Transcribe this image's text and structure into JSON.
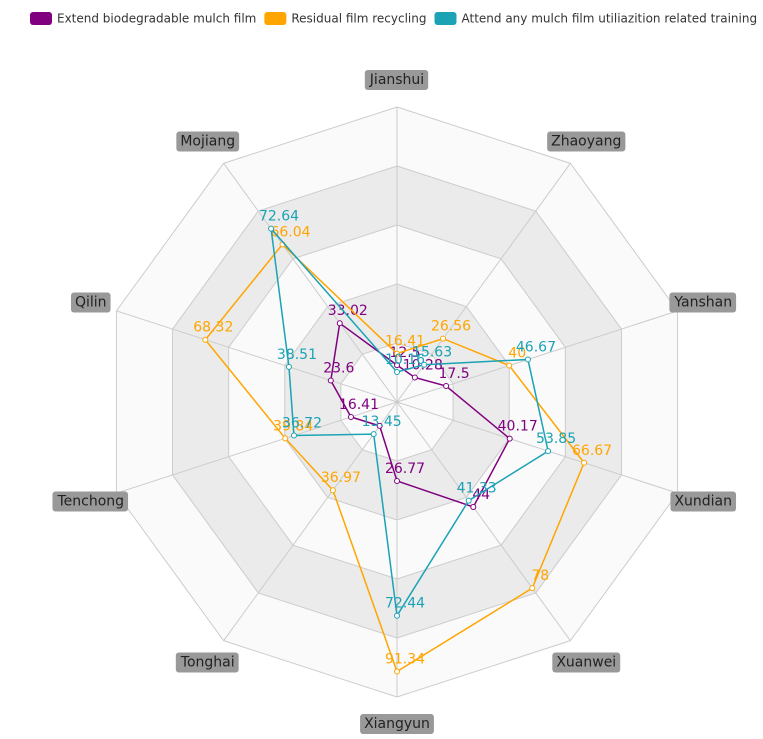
{
  "chart_data": {
    "type": "radar",
    "indicators": [
      "Jianshui",
      "Zhaoyang",
      "Yanshan",
      "Xundian",
      "Xuanwei",
      "Xiangyun",
      "Tonghai",
      "Tenchong",
      "Qilin",
      "Mojiang"
    ],
    "max": 100,
    "series": [
      {
        "name": "Extend biodegradable mulch film",
        "color": "#800080",
        "values": [
          12.5,
          10.28,
          17.5,
          40.17,
          44,
          26.77,
          10,
          16.41,
          23.6,
          33.02
        ],
        "value_labels": [
          "12.5",
          "10.28",
          "17.5",
          "40.17",
          "44",
          "26.77",
          null,
          "16.41",
          "23.6",
          "33.02"
        ]
      },
      {
        "name": "Residual film recycling",
        "color": "#ffa500",
        "values": [
          16.41,
          26.56,
          40,
          66.67,
          78,
          91.34,
          36.97,
          39.84,
          68.32,
          66.04
        ],
        "value_labels": [
          "16.41",
          "26.56",
          "40",
          "66.67",
          "78",
          "91.34",
          "36.97",
          "39.84",
          "68.32",
          "66.04"
        ]
      },
      {
        "name": "Attend any mulch film utiliazition related training",
        "color": "#1ba2b5",
        "values": [
          10.16,
          15.63,
          46.67,
          53.85,
          41.33,
          72.44,
          13.45,
          36.72,
          38.51,
          72.64
        ],
        "value_labels": [
          "10.16",
          "15.63",
          "46.67",
          "53.85",
          "41.33",
          "72.44",
          "13.45",
          "36.72",
          "38.51",
          "72.64"
        ]
      }
    ]
  }
}
